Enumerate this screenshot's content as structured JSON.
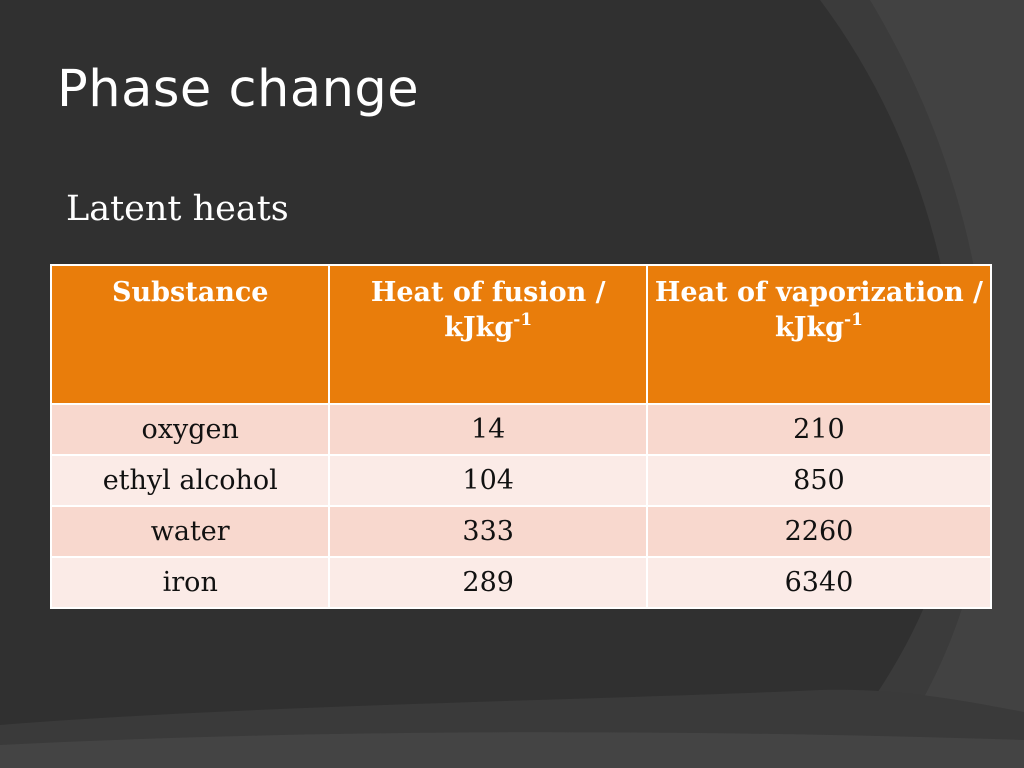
{
  "slide": {
    "title": "Phase change",
    "subtitle": "Latent heats"
  },
  "table": {
    "headers": [
      {
        "text": "Substance",
        "unit": "",
        "exp": ""
      },
      {
        "text": "Heat of fusion /",
        "unit": "kJkg",
        "exp": "-1"
      },
      {
        "text": "Heat of vaporization /",
        "unit": "kJkg",
        "exp": "-1"
      }
    ],
    "rows": [
      {
        "substance": "oxygen",
        "fusion": "14",
        "vaporization": "210"
      },
      {
        "substance": "ethyl alcohol",
        "fusion": "104",
        "vaporization": "850"
      },
      {
        "substance": "water",
        "fusion": "333",
        "vaporization": "2260"
      },
      {
        "substance": "iron",
        "fusion": "289",
        "vaporization": "6340"
      }
    ]
  },
  "colors": {
    "background": "#303030",
    "header": "#e97d0b",
    "row_odd": "#f8d8ce",
    "row_even": "#fbebe7"
  }
}
